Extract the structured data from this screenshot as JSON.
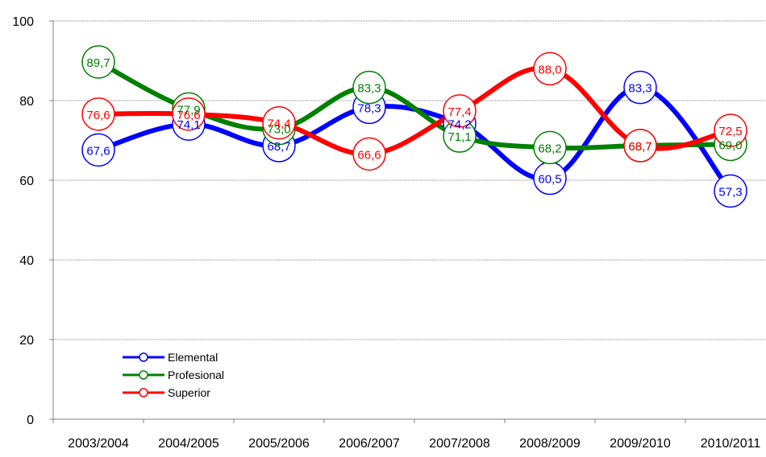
{
  "chart_data": {
    "type": "line",
    "title": "",
    "xlabel": "",
    "ylabel": "",
    "categories": [
      "2003/2004",
      "2004/2005",
      "2005/2006",
      "2006/2007",
      "2007/2008",
      "2008/2009",
      "2009/2010",
      "2010/2011"
    ],
    "ylim": [
      0,
      100
    ],
    "yticks": [
      "0",
      "20",
      "40",
      "60",
      "80",
      "100"
    ],
    "grid": true,
    "legend_position": "bottom-left",
    "series": [
      {
        "name": "Elemental",
        "color": "#0000ff",
        "values": [
          67.6,
          74.1,
          68.7,
          78.3,
          74.2,
          60.5,
          83.3,
          57.3
        ],
        "labels": [
          "67,6",
          "74,1",
          "68,7",
          "78,3",
          "74,2",
          "60,5",
          "83,3",
          "57,3"
        ]
      },
      {
        "name": "Profesional",
        "color": "#008000",
        "values": [
          89.7,
          77.9,
          73.0,
          83.3,
          71.1,
          68.2,
          68.7,
          69.0
        ],
        "labels": [
          "89,7",
          "77,9",
          "73,0",
          "83,3",
          "71,1",
          "68,2",
          "68,7",
          "69,0"
        ]
      },
      {
        "name": "Superior",
        "color": "#ff0000",
        "values": [
          76.6,
          76.6,
          74.4,
          66.6,
          77.4,
          88.0,
          68.7,
          72.5
        ],
        "labels": [
          "76,6",
          "76,6",
          "74,4",
          "66,6",
          "77,4",
          "88,0",
          "68,7",
          "72,5"
        ]
      }
    ]
  }
}
